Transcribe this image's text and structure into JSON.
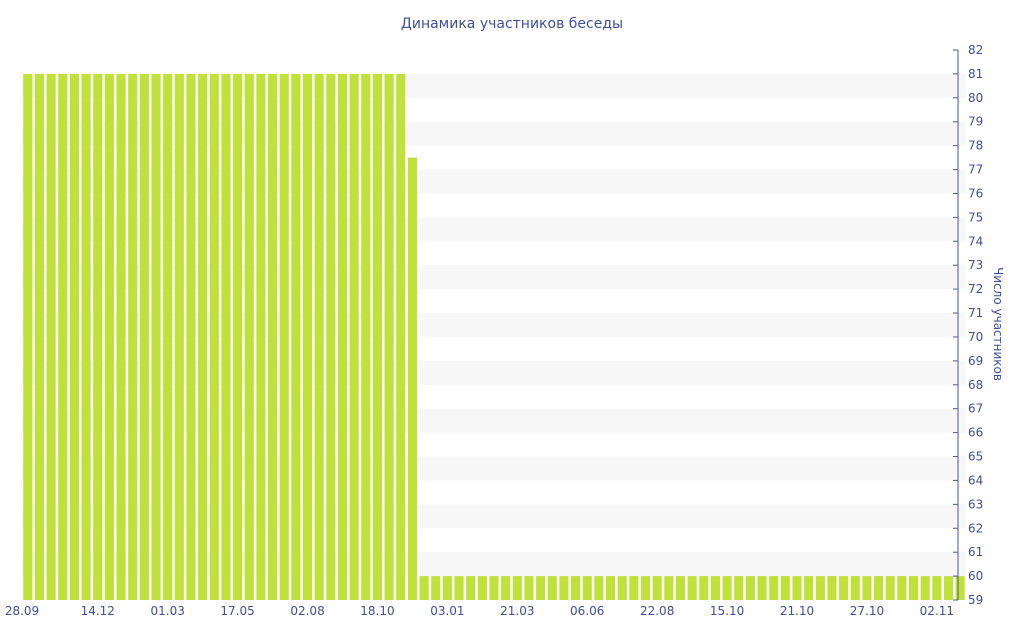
{
  "chart_data": {
    "type": "bar",
    "title": "Динамика участников беседы",
    "xlabel": "",
    "ylabel": "Число участников",
    "ylim": [
      59,
      82
    ],
    "y_ticks": [
      59,
      60,
      61,
      62,
      63,
      64,
      65,
      66,
      67,
      68,
      69,
      70,
      71,
      72,
      73,
      74,
      75,
      76,
      77,
      78,
      79,
      80,
      81,
      82
    ],
    "y_axis_side": "right",
    "grid": "alternating horizontal bands",
    "legend": "none",
    "x_tick_labels": [
      "28.09",
      "14.12",
      "01.03",
      "17.05",
      "02.08",
      "18.10",
      "03.01",
      "21.03",
      "06.06",
      "22.08",
      "15.10",
      "21.10",
      "27.10",
      "02.11"
    ],
    "x_tick_positions": [
      0,
      6.5,
      12.5,
      18.5,
      24.5,
      30.5,
      36.5,
      42.5,
      48.5,
      54.5,
      60.5,
      66.5,
      72.5,
      78.5
    ],
    "values": [
      81,
      81,
      81,
      81,
      81,
      81,
      81,
      81,
      81,
      81,
      81,
      81,
      81,
      81,
      81,
      81,
      81,
      81,
      81,
      81,
      81,
      81,
      81,
      81,
      81,
      81,
      81,
      81,
      81,
      81,
      81,
      81,
      81,
      77.5,
      60,
      60,
      60,
      60,
      60,
      60,
      60,
      60,
      60,
      60,
      60,
      60,
      60,
      60,
      60,
      60,
      60,
      60,
      60,
      60,
      60,
      60,
      60,
      60,
      60,
      60,
      60,
      60,
      60,
      60,
      60,
      60,
      60,
      60,
      60,
      60,
      60,
      60,
      60,
      60,
      60,
      60,
      60,
      60,
      60,
      60,
      60
    ],
    "colors": {
      "bar": "#c0e03a",
      "band": "#f7f7f7",
      "text": "#3e4f9a",
      "axis": "#4a5a9a"
    }
  }
}
